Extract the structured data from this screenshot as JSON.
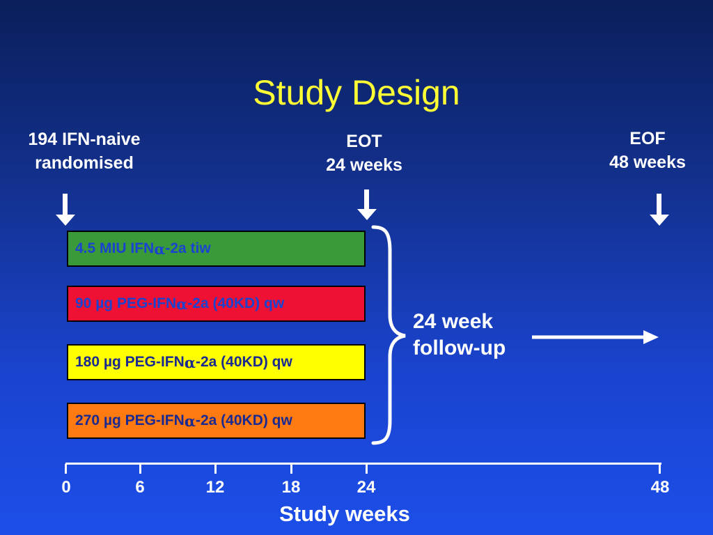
{
  "slide": {
    "title": "Study Design"
  },
  "milestones": {
    "randomised": {
      "line1": "194 IFN-naive",
      "line2": "randomised"
    },
    "eot": {
      "line1": "EOT",
      "line2": "24 weeks"
    },
    "eof": {
      "line1": "EOF",
      "line2": "48 weeks"
    }
  },
  "arms": [
    {
      "prefix": "4.5 MIU IFN ",
      "greek": "α",
      "suffix": "-2a tiw",
      "fill": "#3a9a3a",
      "text_color": "#1a44cf"
    },
    {
      "prefix": "90 µg PEG-IFN ",
      "greek": "α",
      "suffix": "-2a (40KD) qw",
      "fill": "#ee1133",
      "text_color": "#1a44cf"
    },
    {
      "prefix": "180 µg PEG-IFN ",
      "greek": "α",
      "suffix": "-2a (40KD) qw",
      "fill": "#ffff00",
      "text_color": "#1a2a90"
    },
    {
      "prefix": "270 µg PEG-IFN ",
      "greek": "α",
      "suffix": "-2a (40KD) qw",
      "fill": "#ff7a10",
      "text_color": "#1a2a90"
    }
  ],
  "followup": {
    "line1": "24 week",
    "line2": "follow-up"
  },
  "axis": {
    "ticks": [
      "0",
      "6",
      "12",
      "18",
      "24",
      "48"
    ],
    "title": "Study weeks"
  }
}
